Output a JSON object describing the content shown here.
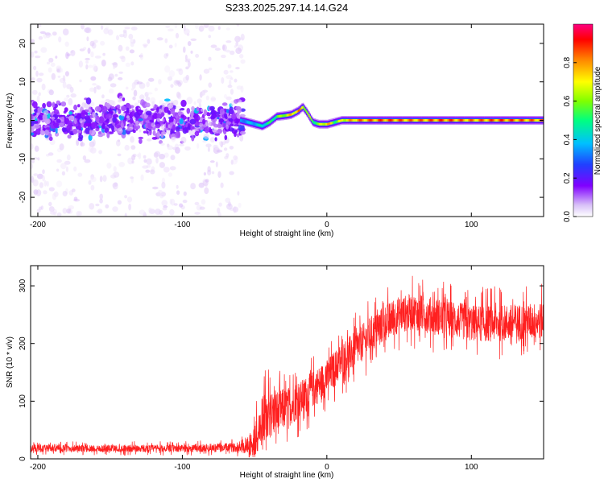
{
  "chart_data": [
    {
      "type": "heatmap",
      "title": "S233.2025.297.14.14.G24",
      "xlabel": "Height of straight line (km)",
      "ylabel": "Frequency (Hz)",
      "xlim": [
        -205,
        150
      ],
      "ylim": [
        -25,
        25
      ],
      "xticks": [
        -200,
        -100,
        0,
        100
      ],
      "yticks": [
        -20,
        -10,
        0,
        10,
        20
      ],
      "colorbar": {
        "label": "Normalized spectral amplitude",
        "range": [
          0,
          1
        ],
        "ticks": [
          0.0,
          0.2,
          0.4,
          0.6,
          0.8
        ],
        "tick_labels": [
          "0.0",
          "0.2",
          "0.4",
          "0.6",
          "0.8"
        ],
        "colormap": [
          "#ffffff",
          "#e0c8f8",
          "#8000ff",
          "#3040ff",
          "#00c0ff",
          "#00ff80",
          "#80ff00",
          "#ffff00",
          "#ff8000",
          "#ff0000",
          "#ff0080"
        ]
      },
      "ridge": {
        "description_x": [
          -60,
          -50,
          -45,
          -40,
          -35,
          -30,
          -25,
          -20,
          -17,
          -14,
          -10,
          -6,
          0,
          5,
          10,
          20,
          40,
          60,
          80,
          100,
          120,
          150
        ],
        "freq": [
          0,
          -1,
          -1.5,
          -0.5,
          1,
          1.2,
          1.5,
          2.5,
          3.5,
          2,
          -0.5,
          -1,
          -1,
          -0.5,
          0,
          0,
          0,
          0,
          0,
          0,
          0,
          0
        ],
        "amplitude": [
          0.4,
          0.45,
          0.5,
          0.55,
          0.6,
          0.7,
          0.8,
          0.85,
          0.75,
          0.7,
          0.6,
          0.65,
          0.85,
          0.6,
          0.75,
          0.85,
          0.9,
          0.85,
          0.9,
          0.85,
          0.9,
          0.85
        ]
      },
      "noise_region_x": [
        -205,
        -58
      ]
    },
    {
      "type": "line",
      "xlabel": "Height of straight line (km)",
      "ylabel": "SNR (10 * v/v)",
      "xlim": [
        -205,
        150
      ],
      "ylim": [
        0,
        335
      ],
      "xticks": [
        -200,
        -100,
        0,
        100
      ],
      "yticks": [
        0,
        100,
        200,
        300
      ],
      "series": [
        {
          "name": "SNR",
          "color": "#ff2020",
          "trend_x": [
            -205,
            -150,
            -100,
            -60,
            -50,
            -45,
            -40,
            -35,
            -30,
            -20,
            -10,
            0,
            10,
            20,
            30,
            40,
            50,
            60,
            70,
            80,
            100,
            120,
            150
          ],
          "trend_y": [
            18,
            18,
            18,
            20,
            28,
            60,
            75,
            80,
            85,
            100,
            120,
            140,
            170,
            190,
            215,
            235,
            250,
            255,
            250,
            245,
            235,
            235,
            240
          ],
          "noise_amplitude": [
            8,
            8,
            8,
            10,
            35,
            60,
            55,
            50,
            45,
            40,
            40,
            40,
            40,
            40,
            40,
            40,
            40,
            40,
            40,
            40,
            40,
            40,
            40
          ]
        }
      ]
    }
  ]
}
